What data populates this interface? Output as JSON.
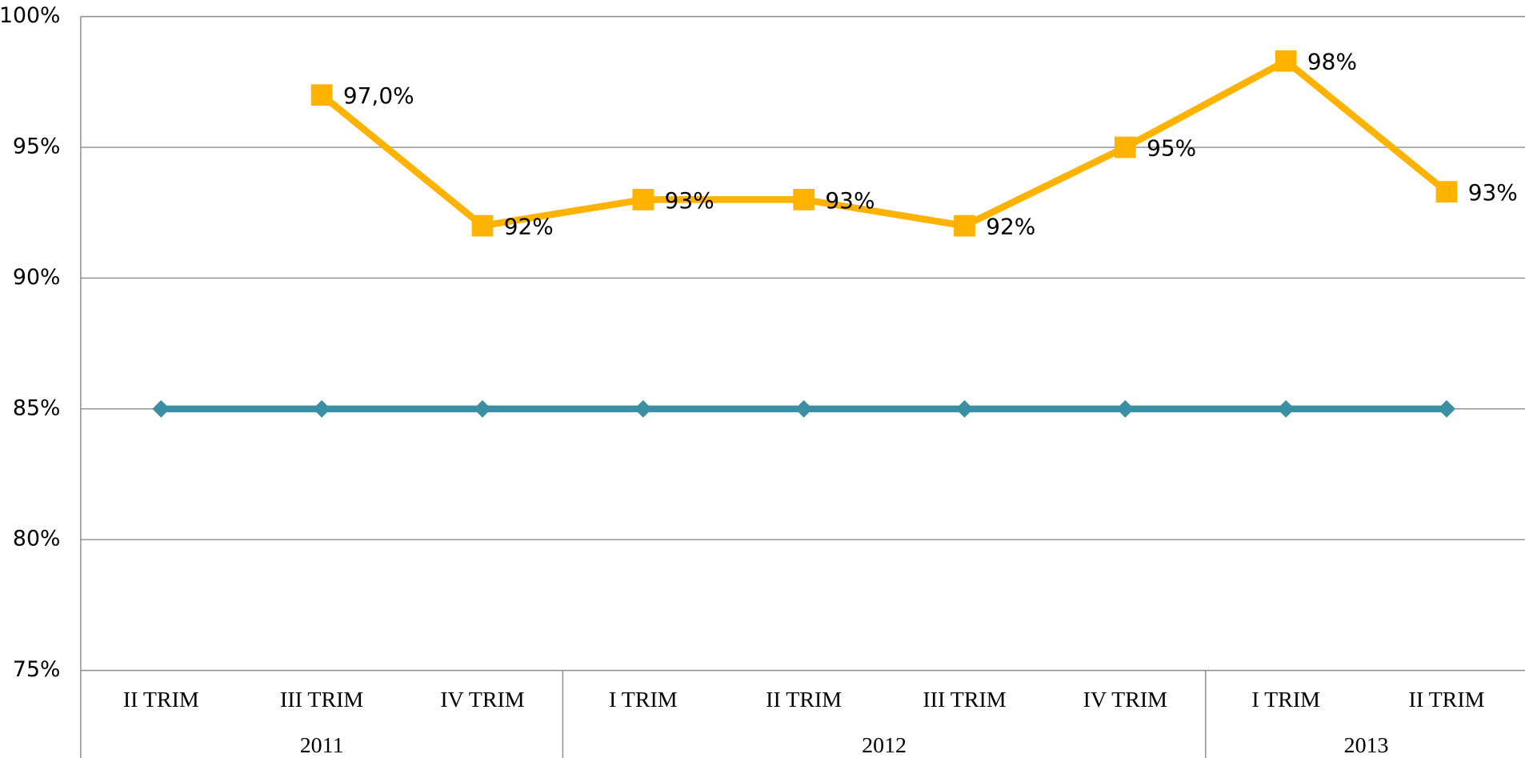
{
  "chart_data": {
    "type": "line",
    "category_groups": [
      {
        "label": "2011",
        "categories": [
          "II TRIM",
          "III TRIM",
          "IV TRIM"
        ]
      },
      {
        "label": "2012",
        "categories": [
          "I TRIM",
          "II TRIM",
          "III TRIM",
          "IV TRIM"
        ]
      },
      {
        "label": "2013",
        "categories": [
          "I TRIM",
          "II TRIM"
        ]
      }
    ],
    "series": [
      {
        "color": "#3a8fa3",
        "marker": "diamond",
        "values": [
          85,
          85,
          85,
          85,
          85,
          85,
          85,
          85,
          85
        ]
      },
      {
        "color": "#ffb300",
        "marker": "square",
        "values": [
          null,
          97,
          92,
          93,
          93,
          92,
          95,
          98.3,
          93.3
        ],
        "value_labels": [
          null,
          "97,0%",
          "92%",
          "93%",
          "93%",
          "92%",
          "95%",
          "98%",
          "93%"
        ]
      }
    ],
    "ylim": [
      75,
      100
    ],
    "yticks": [
      {
        "value": 75,
        "label": "75%"
      },
      {
        "value": 80,
        "label": "80%"
      },
      {
        "value": 85,
        "label": "85%"
      },
      {
        "value": 90,
        "label": "90%"
      },
      {
        "value": 95,
        "label": "95%"
      },
      {
        "value": 100,
        "label": "100%"
      }
    ],
    "grid": true
  }
}
